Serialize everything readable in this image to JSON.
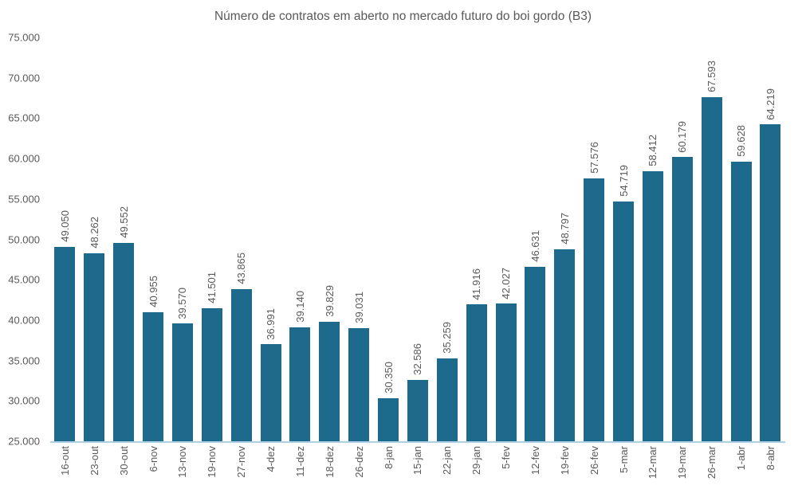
{
  "page": {
    "background": "#ffffff"
  },
  "colors": {
    "bar": "#1d6a8c",
    "text": "#595959",
    "axis_line": "#afd0e4"
  },
  "chart_data": {
    "type": "bar",
    "title": "Número de contratos em aberto no mercado futuro do boi gordo (B3)",
    "xlabel": "",
    "ylabel": "",
    "categories": [
      "16-out",
      "23-out",
      "30-out",
      "6-nov",
      "13-nov",
      "19-nov",
      "27-nov",
      "4-dez",
      "11-dez",
      "18-dez",
      "26-dez",
      "8-jan",
      "15-jan",
      "22-jan",
      "29-jan",
      "5-fev",
      "12-fev",
      "19-fev",
      "26-fev",
      "5-mar",
      "12-mar",
      "19-mar",
      "26-mar",
      "1-abr",
      "8-abr"
    ],
    "values": [
      49050,
      48262,
      49552,
      40955,
      39570,
      41501,
      43865,
      36991,
      39140,
      39829,
      39031,
      30350,
      32586,
      35259,
      41916,
      42027,
      46631,
      48797,
      57576,
      54719,
      58412,
      60179,
      67593,
      59628,
      64219
    ],
    "value_labels": [
      "49.050",
      "48.262",
      "49.552",
      "40.955",
      "39.570",
      "41.501",
      "43.865",
      "36.991",
      "39.140",
      "39.829",
      "39.031",
      "30.350",
      "32.586",
      "35.259",
      "41.916",
      "42.027",
      "46.631",
      "48.797",
      "57.576",
      "54.719",
      "58.412",
      "60.179",
      "67.593",
      "59.628",
      "64.219"
    ],
    "ylim": [
      25000,
      75000
    ],
    "ytick_step": 5000,
    "ytick_labels": [
      "75.000",
      "70.000",
      "65.000",
      "60.000",
      "55.000",
      "50.000",
      "45.000",
      "40.000",
      "35.000",
      "30.000",
      "25.000"
    ],
    "grid": false,
    "legend": null,
    "value_labels_rotation": "vertical-bottom-to-top",
    "xtick_rotation": "vertical-bottom-to-top"
  }
}
